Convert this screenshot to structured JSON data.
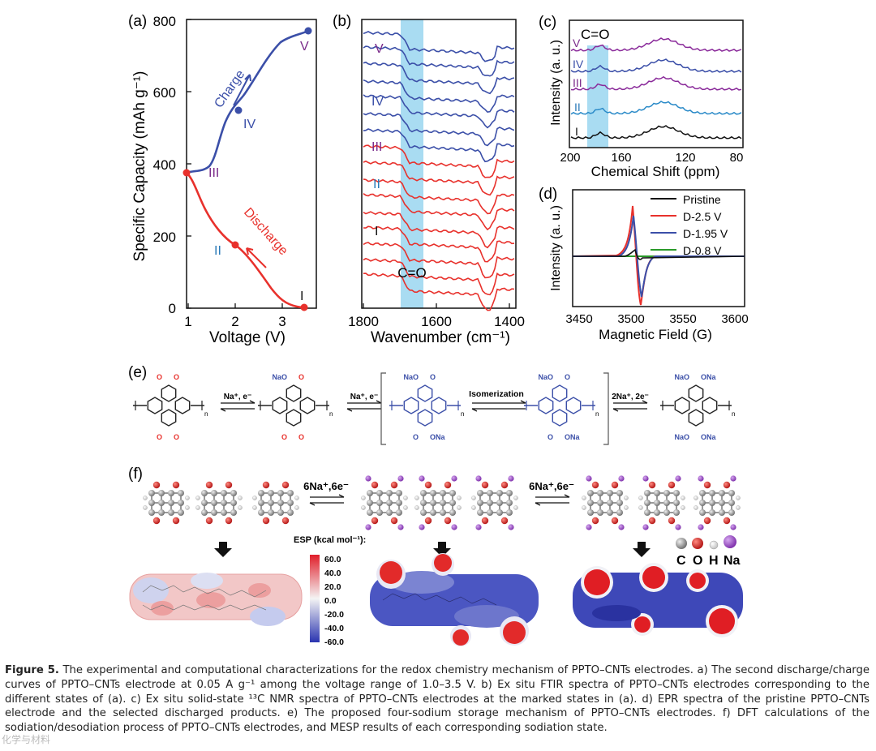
{
  "panel_a": {
    "label": "(a)",
    "ylabel": "Specific Capacity (mAh g⁻¹)",
    "xlabel": "Voltage (V)",
    "xticks": [
      "1",
      "2",
      "3"
    ],
    "yticks": [
      "0",
      "200",
      "400",
      "600",
      "800"
    ],
    "charge_label": "Charge",
    "discharge_label": "Discharge",
    "states": [
      "I",
      "II",
      "III",
      "IV",
      "V"
    ],
    "colors": {
      "charge": "#3b4fa8",
      "discharge": "#e8312c"
    }
  },
  "panel_b": {
    "label": "(b)",
    "xlabel": "Wavenumber (cm⁻¹)",
    "xticks": [
      "1800",
      "1600",
      "1400"
    ],
    "band_label": "C=O",
    "states": [
      "V",
      "IV",
      "III",
      "II",
      "I"
    ]
  },
  "panel_c": {
    "label": "(c)",
    "ylabel": "Intensity (a. u.)",
    "xlabel": "Chemical Shift (ppm)",
    "xticks": [
      "200",
      "160",
      "120",
      "80"
    ],
    "band_label": "C=O",
    "states": [
      "V",
      "IV",
      "III",
      "II",
      "I"
    ]
  },
  "panel_d": {
    "label": "(d)",
    "ylabel": "Intensity (a. u.)",
    "xlabel": "Magnetic Field (G)",
    "xticks": [
      "3450",
      "3500",
      "3550",
      "3600"
    ],
    "legend": [
      "Pristine",
      "D-2.5 V",
      "D-1.95 V",
      "D-0.8 V"
    ],
    "colors": [
      "#111111",
      "#e8312c",
      "#3b4fa8",
      "#2a9a2a"
    ]
  },
  "panel_e": {
    "label": "(e)",
    "arrows": [
      "Na⁺, e⁻",
      "Na⁺, e⁻",
      "Isomerization",
      "2Na⁺, 2e⁻"
    ],
    "groups": [
      "NaO",
      "ONa",
      "O"
    ]
  },
  "panel_f": {
    "label": "(f)",
    "arrows": [
      "6Na⁺,6e⁻",
      "6Na⁺,6e⁻"
    ],
    "esp_title": "ESP (kcal mol⁻¹):",
    "esp_ticks": [
      "60.0",
      "40.0",
      "20.0",
      "0.0",
      "-20.0",
      "-40.0",
      "-60.0"
    ],
    "atom_legend": [
      "C",
      "O",
      "H",
      "Na"
    ]
  },
  "caption": {
    "title": "Figure 5.",
    "text": "The experimental and computational characterizations for the redox chemistry mechanism of PPTO–CNTs electrodes. a) The second discharge/charge curves of PPTO–CNTs electrode at 0.05 A g⁻¹ among the voltage range of 1.0–3.5 V. b) Ex situ FTIR spectra of PPTO–CNTs electrodes corresponding to the different states of (a). c) Ex situ solid-state ¹³C NMR spectra of PPTO–CNTs electrodes at the marked states in (a). d) EPR spectra of the pristine PPTO–CNTs electrode and the selected discharged products. e) The proposed four-sodium storage mechanism of PPTO–CNTs electrodes. f) DFT calculations of the sodiation/desodiation process of PPTO–CNTs electrodes, and MESP results of each corresponding sodiation state."
  },
  "watermark": "化学与材料"
}
